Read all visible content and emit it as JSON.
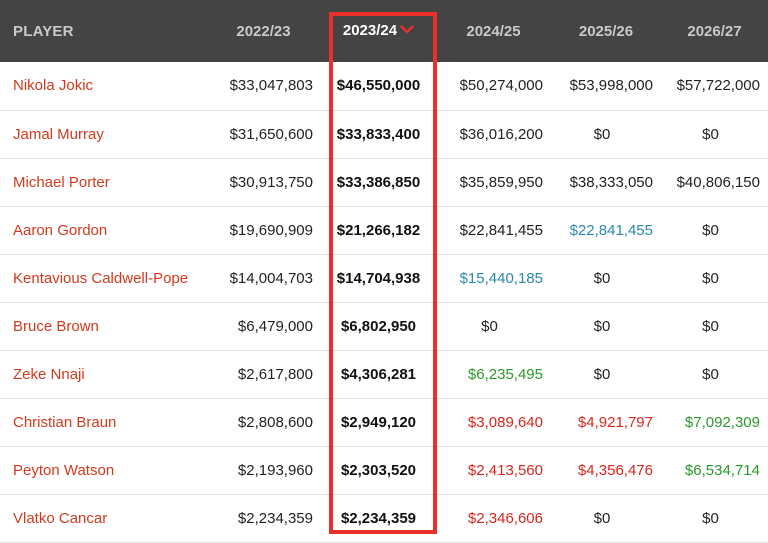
{
  "headers": {
    "player": "PLAYER",
    "y2022": "2022/23",
    "y2023": "2023/24",
    "y2024": "2024/25",
    "y2025": "2025/26",
    "y2026": "2026/27"
  },
  "sort": {
    "column": "2023/24",
    "direction": "descending",
    "icon": "chevron-down-icon"
  },
  "colors": {
    "header_bg": "#444444",
    "player_name": "#d23a1e",
    "blue": "#2c87b0",
    "green": "#2a9a2a",
    "red": "#d9271f",
    "highlight": "#e8312a"
  },
  "rows": [
    {
      "name": "Nikola Jokic",
      "cells": [
        {
          "v": "$33,047,803",
          "c": "black"
        },
        {
          "v": "$46,550,000",
          "c": "bold"
        },
        {
          "v": "$50,274,000",
          "c": "black"
        },
        {
          "v": "$53,998,000",
          "c": "black"
        },
        {
          "v": "$57,722,000",
          "c": "black"
        }
      ]
    },
    {
      "name": "Jamal Murray",
      "cells": [
        {
          "v": "$31,650,600",
          "c": "black"
        },
        {
          "v": "$33,833,400",
          "c": "bold"
        },
        {
          "v": "$36,016,200",
          "c": "black"
        },
        {
          "v": "$0",
          "c": "black"
        },
        {
          "v": "$0",
          "c": "black"
        }
      ]
    },
    {
      "name": "Michael Porter",
      "cells": [
        {
          "v": "$30,913,750",
          "c": "black"
        },
        {
          "v": "$33,386,850",
          "c": "bold"
        },
        {
          "v": "$35,859,950",
          "c": "black"
        },
        {
          "v": "$38,333,050",
          "c": "black"
        },
        {
          "v": "$40,806,150",
          "c": "black"
        }
      ]
    },
    {
      "name": "Aaron Gordon",
      "cells": [
        {
          "v": "$19,690,909",
          "c": "black"
        },
        {
          "v": "$21,266,182",
          "c": "bold"
        },
        {
          "v": "$22,841,455",
          "c": "black"
        },
        {
          "v": "$22,841,455",
          "c": "blue"
        },
        {
          "v": "$0",
          "c": "black"
        }
      ]
    },
    {
      "name": "Kentavious Caldwell-Pope",
      "cells": [
        {
          "v": "$14,004,703",
          "c": "black"
        },
        {
          "v": "$14,704,938",
          "c": "bold"
        },
        {
          "v": "$15,440,185",
          "c": "blue"
        },
        {
          "v": "$0",
          "c": "black"
        },
        {
          "v": "$0",
          "c": "black"
        }
      ]
    },
    {
      "name": "Bruce Brown",
      "cells": [
        {
          "v": "$6,479,000",
          "c": "black"
        },
        {
          "v": "$6,802,950",
          "c": "bold-blue"
        },
        {
          "v": "$0",
          "c": "black"
        },
        {
          "v": "$0",
          "c": "black"
        },
        {
          "v": "$0",
          "c": "black"
        }
      ]
    },
    {
      "name": "Zeke Nnaji",
      "cells": [
        {
          "v": "$2,617,800",
          "c": "black"
        },
        {
          "v": "$4,306,281",
          "c": "bold"
        },
        {
          "v": "$6,235,495",
          "c": "green"
        },
        {
          "v": "$0",
          "c": "black"
        },
        {
          "v": "$0",
          "c": "black"
        }
      ]
    },
    {
      "name": "Christian Braun",
      "cells": [
        {
          "v": "$2,808,600",
          "c": "black"
        },
        {
          "v": "$2,949,120",
          "c": "bold"
        },
        {
          "v": "$3,089,640",
          "c": "red"
        },
        {
          "v": "$4,921,797",
          "c": "red"
        },
        {
          "v": "$7,092,309",
          "c": "green"
        }
      ]
    },
    {
      "name": "Peyton Watson",
      "cells": [
        {
          "v": "$2,193,960",
          "c": "black"
        },
        {
          "v": "$2,303,520",
          "c": "bold"
        },
        {
          "v": "$2,413,560",
          "c": "red"
        },
        {
          "v": "$4,356,476",
          "c": "red"
        },
        {
          "v": "$6,534,714",
          "c": "green"
        }
      ]
    },
    {
      "name": "Vlatko Cancar",
      "cells": [
        {
          "v": "$2,234,359",
          "c": "black"
        },
        {
          "v": "$2,234,359",
          "c": "bold"
        },
        {
          "v": "$2,346,606",
          "c": "red"
        },
        {
          "v": "$0",
          "c": "black"
        },
        {
          "v": "$0",
          "c": "black"
        }
      ]
    }
  ]
}
